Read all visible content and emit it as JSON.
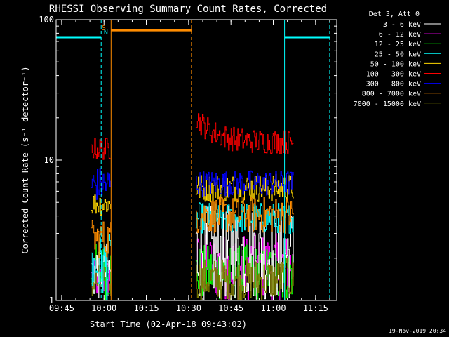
{
  "chart_data": {
    "type": "line",
    "title": "RHESSI Observing Summary Count Rates, Corrected",
    "xlabel": "Start Time (02-Apr-18 09:43:02)",
    "ylabel": "Corrected Count Rate (s⁻¹ detector⁻¹)",
    "xlim": [
      "09:43:02",
      "11:22:30"
    ],
    "ylim": [
      1,
      100
    ],
    "y_scale": "log",
    "x_ticks": [
      "09:45",
      "10:00",
      "10:15",
      "10:30",
      "10:45",
      "11:00",
      "11:15"
    ],
    "y_ticks": [
      "1",
      "10",
      "100"
    ],
    "legend_title": "Det 3, Att 0",
    "legend_position": "right-outside",
    "footer_date": "19-Nov-2019 20:34",
    "flags": [
      {
        "label": "S",
        "time": "09:59:55",
        "color": "#ff8c00"
      },
      {
        "label": "N",
        "time": "10:00:40",
        "color": "#00d0d0"
      }
    ],
    "attenuator_bars": [
      {
        "start": "09:43:02",
        "end": "09:59:00",
        "y": 75,
        "color": "#00ffff"
      },
      {
        "start": "10:02:30",
        "end": "10:31:00",
        "y": 84,
        "color": "#ff8c00"
      },
      {
        "start": "11:04:00",
        "end": "11:20:00",
        "y": 75,
        "color": "#00ffff"
      }
    ],
    "vertical_lines": [
      {
        "time": "09:43:02",
        "style": "solid",
        "color": "#00ffff"
      },
      {
        "time": "09:59:00",
        "style": "dashed",
        "color": "#00ffff"
      },
      {
        "time": "10:02:30",
        "style": "solid",
        "color": "#ff8c00"
      },
      {
        "time": "10:31:00",
        "style": "dashed",
        "color": "#ff8c00"
      },
      {
        "time": "11:04:00",
        "style": "solid",
        "color": "#00ffff"
      },
      {
        "time": "11:20:00",
        "style": "dashed",
        "color": "#00ffff"
      }
    ],
    "data_intervals": [
      {
        "start": "09:55:30",
        "end": "10:02:30"
      },
      {
        "start": "10:32:30",
        "end": "11:07:10"
      }
    ],
    "series": [
      {
        "name": "3 - 6 keV",
        "color": "#ffffff",
        "levels": [
          [
            1.0,
            2.6
          ],
          [
            1.0,
            4.8
          ]
        ]
      },
      {
        "name": "6 - 12 keV",
        "color": "#ff00ff",
        "levels": [
          [
            1.0,
            2.0
          ],
          [
            1.0,
            3.0
          ]
        ]
      },
      {
        "name": "12 - 25 keV",
        "color": "#00ff00",
        "levels": [
          [
            1.0,
            2.6
          ],
          [
            1.0,
            2.5
          ]
        ]
      },
      {
        "name": "25 - 50 keV",
        "color": "#00ffff",
        "levels": [
          [
            1.0,
            3.0
          ],
          [
            3.0,
            5.0
          ]
        ]
      },
      {
        "name": "50 - 100 keV",
        "color": "#ffd700",
        "levels": [
          [
            4.0,
            6.0
          ],
          [
            5.0,
            8.0
          ]
        ]
      },
      {
        "name": "100 - 300 keV",
        "color": "#ff0000",
        "levels": [
          [
            10.0,
            14.5
          ],
          [
            11.0,
            16.5
          ]
        ]
      },
      {
        "name": "300 - 800 keV",
        "color": "#0000ff",
        "levels": [
          [
            5.0,
            9.0
          ],
          [
            5.5,
            8.5
          ]
        ]
      },
      {
        "name": "800 - 7000 keV",
        "color": "#ff8c00",
        "levels": [
          [
            2.0,
            3.8
          ],
          [
            3.0,
            5.5
          ]
        ]
      },
      {
        "name": "7000 - 15000 keV",
        "color": "#808000",
        "levels": [
          [
            1.0,
            1.8
          ],
          [
            1.0,
            2.0
          ]
        ]
      }
    ]
  }
}
